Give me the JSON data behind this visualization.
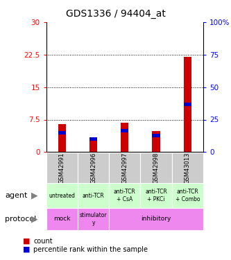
{
  "title": "GDS1336 / 94404_at",
  "samples": [
    "GSM42991",
    "GSM42996",
    "GSM42997",
    "GSM42998",
    "GSM43013"
  ],
  "red_values": [
    6.5,
    3.2,
    6.8,
    4.8,
    22.0
  ],
  "blue_values": [
    4.5,
    3.0,
    5.0,
    3.8,
    11.0
  ],
  "blue_bar_height": 0.8,
  "left_ylabels": [
    "0",
    "7.5",
    "15",
    "22.5",
    "30"
  ],
  "left_yticks": [
    0,
    7.5,
    15,
    22.5,
    30
  ],
  "right_ylabels": [
    "0",
    "25",
    "50",
    "75",
    "100%"
  ],
  "right_yticks": [
    0,
    7.5,
    15,
    22.5,
    30
  ],
  "agent_labels": [
    "untreated",
    "anti-TCR",
    "anti-TCR\n+ CsA",
    "anti-TCR\n+ PKCi",
    "anti-TCR\n+ Combo"
  ],
  "agent_bg": "#ccffcc",
  "sample_bg": "#cccccc",
  "protocol_bg": "#ee88ee",
  "bar_red": "#cc0000",
  "bar_blue": "#0000cc",
  "title_fontsize": 10,
  "bar_width": 0.25,
  "ymax": 30
}
